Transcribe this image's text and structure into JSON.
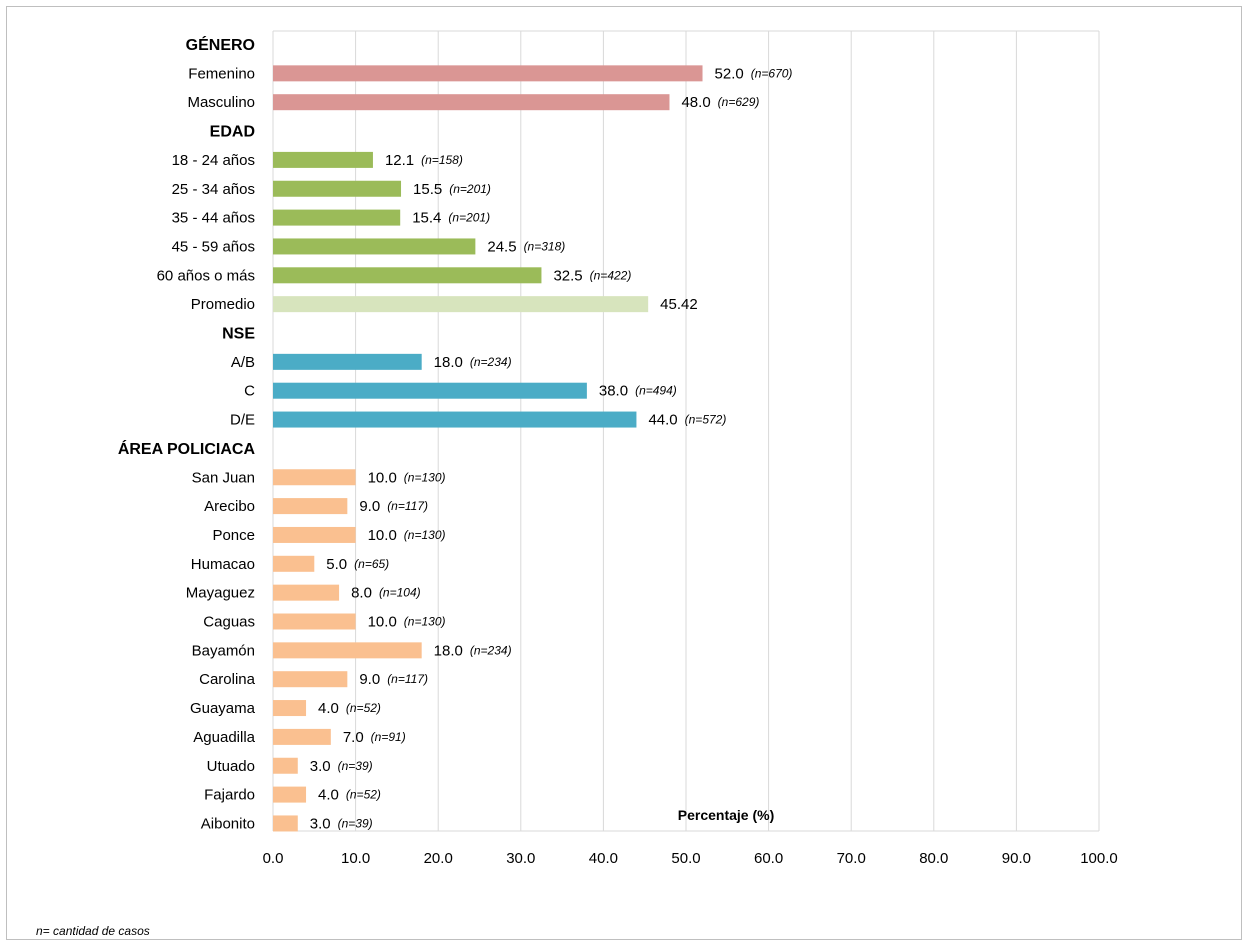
{
  "chart_data": {
    "type": "bar",
    "orientation": "horizontal",
    "xlabel": "Percentaje (%)",
    "xlim": [
      0,
      100
    ],
    "x_ticks": [
      "0.0",
      "10.0",
      "20.0",
      "30.0",
      "40.0",
      "50.0",
      "60.0",
      "70.0",
      "80.0",
      "90.0",
      "100.0"
    ],
    "grid": true,
    "footnote": "n= cantidad de casos",
    "groups": [
      {
        "name": "GÉNERO",
        "color": "#da9694",
        "items": [
          {
            "label": "Femenino",
            "value": 52.0,
            "value_label": "52.0",
            "n": "(n=670)"
          },
          {
            "label": "Masculino",
            "value": 48.0,
            "value_label": "48.0",
            "n": "(n=629)"
          }
        ]
      },
      {
        "name": "EDAD",
        "color": "#9bbb59",
        "items": [
          {
            "label": "18 - 24 años",
            "value": 12.1,
            "value_label": "12.1",
            "n": "(n=158)"
          },
          {
            "label": "25 - 34 años",
            "value": 15.5,
            "value_label": "15.5",
            "n": "(n=201)"
          },
          {
            "label": "35 - 44 años",
            "value": 15.4,
            "value_label": "15.4",
            "n": "(n=201)"
          },
          {
            "label": "45 - 59 años",
            "value": 24.5,
            "value_label": "24.5",
            "n": "(n=318)"
          },
          {
            "label": "60 años o más",
            "value": 32.5,
            "value_label": "32.5",
            "n": "(n=422)"
          },
          {
            "label": "Promedio",
            "value": 45.42,
            "value_label": "45.42",
            "n": "",
            "color": "#d7e4bd"
          }
        ]
      },
      {
        "name": "NSE",
        "color": "#4bacc6",
        "items": [
          {
            "label": "A/B",
            "value": 18.0,
            "value_label": "18.0",
            "n": "(n=234)"
          },
          {
            "label": "C",
            "value": 38.0,
            "value_label": "38.0",
            "n": "(n=494)"
          },
          {
            "label": "D/E",
            "value": 44.0,
            "value_label": "44.0",
            "n": "(n=572)"
          }
        ]
      },
      {
        "name": "ÁREA POLICIACA",
        "color": "#fac090",
        "items": [
          {
            "label": "San Juan",
            "value": 10.0,
            "value_label": "10.0",
            "n": "(n=130)"
          },
          {
            "label": "Arecibo",
            "value": 9.0,
            "value_label": "9.0",
            "n": "(n=117)"
          },
          {
            "label": "Ponce",
            "value": 10.0,
            "value_label": "10.0",
            "n": "(n=130)"
          },
          {
            "label": "Humacao",
            "value": 5.0,
            "value_label": "5.0",
            "n": "(n=65)"
          },
          {
            "label": "Mayaguez",
            "value": 8.0,
            "value_label": "8.0",
            "n": "(n=104)"
          },
          {
            "label": "Caguas",
            "value": 10.0,
            "value_label": "10.0",
            "n": "(n=130)"
          },
          {
            "label": "Bayamón",
            "value": 18.0,
            "value_label": "18.0",
            "n": "(n=234)"
          },
          {
            "label": "Carolina",
            "value": 9.0,
            "value_label": "9.0",
            "n": "(n=117)"
          },
          {
            "label": "Guayama",
            "value": 4.0,
            "value_label": "4.0",
            "n": "(n=52)"
          },
          {
            "label": "Aguadilla",
            "value": 7.0,
            "value_label": "7.0",
            "n": "(n=91)"
          },
          {
            "label": "Utuado",
            "value": 3.0,
            "value_label": "3.0",
            "n": "(n=39)"
          },
          {
            "label": "Fajardo",
            "value": 4.0,
            "value_label": "4.0",
            "n": "(n=52)"
          },
          {
            "label": "Aibonito",
            "value": 3.0,
            "value_label": "3.0",
            "n": "(n=39)"
          }
        ]
      }
    ]
  }
}
